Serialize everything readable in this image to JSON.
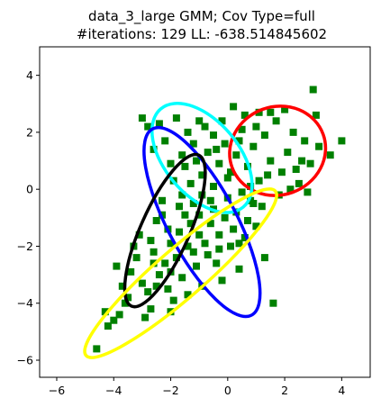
{
  "chart_data": {
    "type": "scatter",
    "title": "data_3_large GMM; Cov Type=full",
    "subtitle": "#iterations: 129 LL: -638.514845602",
    "xlabel": "",
    "ylabel": "",
    "xlim": [
      -6.6,
      5.0
    ],
    "ylim": [
      -6.6,
      5.0
    ],
    "x_ticks": [
      -6,
      -4,
      -2,
      0,
      2,
      4
    ],
    "y_ticks": [
      -6,
      -4,
      -2,
      0,
      2,
      4
    ],
    "grid": false,
    "marker": "square",
    "marker_color": "#008000",
    "points_note_free": true,
    "points": [
      [
        -4.6,
        -5.6
      ],
      [
        -4.0,
        -4.6
      ],
      [
        -3.8,
        -4.4
      ],
      [
        -4.2,
        -4.8
      ],
      [
        -3.6,
        -4.0
      ],
      [
        -3.5,
        -3.8
      ],
      [
        -3.9,
        -2.7
      ],
      [
        -3.4,
        -2.9
      ],
      [
        -3.2,
        -2.4
      ],
      [
        -3.0,
        -3.3
      ],
      [
        -2.8,
        -3.6
      ],
      [
        -2.7,
        -4.2
      ],
      [
        -2.9,
        -4.5
      ],
      [
        -2.6,
        -2.2
      ],
      [
        -2.4,
        -3.0
      ],
      [
        -2.2,
        -2.6
      ],
      [
        -2.1,
        -3.5
      ],
      [
        -2.0,
        -1.9
      ],
      [
        -1.8,
        -2.4
      ],
      [
        -1.7,
        -1.5
      ],
      [
        -1.6,
        -3.1
      ],
      [
        -1.5,
        -0.9
      ],
      [
        -1.4,
        -2.0
      ],
      [
        -1.3,
        -1.2
      ],
      [
        -1.2,
        -0.5
      ],
      [
        -1.1,
        -2.7
      ],
      [
        -1.0,
        -1.6
      ],
      [
        -0.9,
        -0.2
      ],
      [
        -0.8,
        -1.9
      ],
      [
        -0.7,
        -2.3
      ],
      [
        -0.6,
        -1.2
      ],
      [
        -0.5,
        -0.7
      ],
      [
        -0.4,
        -2.6
      ],
      [
        -0.3,
        -1.6
      ],
      [
        -0.2,
        -3.2
      ],
      [
        -0.1,
        -1.0
      ],
      [
        0.0,
        -0.3
      ],
      [
        0.1,
        -2.0
      ],
      [
        0.2,
        -1.4
      ],
      [
        0.3,
        -0.8
      ],
      [
        0.4,
        -2.8
      ],
      [
        0.5,
        -0.1
      ],
      [
        0.6,
        -1.7
      ],
      [
        0.7,
        -1.1
      ],
      [
        0.8,
        -0.4
      ],
      [
        1.0,
        -1.3
      ],
      [
        1.2,
        -0.6
      ],
      [
        1.3,
        -2.4
      ],
      [
        1.6,
        -4.0
      ],
      [
        -2.5,
        -1.1
      ],
      [
        -2.3,
        -0.4
      ],
      [
        -2.1,
        -1.4
      ],
      [
        -1.9,
        0.3
      ],
      [
        -1.7,
        -0.6
      ],
      [
        -1.5,
        0.8
      ],
      [
        -1.3,
        0.2
      ],
      [
        -1.1,
        1.0
      ],
      [
        -0.9,
        0.5
      ],
      [
        -0.7,
        1.3
      ],
      [
        -0.5,
        0.1
      ],
      [
        -0.3,
        0.9
      ],
      [
        -0.1,
        1.6
      ],
      [
        0.1,
        0.6
      ],
      [
        0.3,
        1.2
      ],
      [
        0.5,
        2.1
      ],
      [
        0.7,
        0.8
      ],
      [
        0.9,
        1.5
      ],
      [
        1.1,
        0.3
      ],
      [
        1.3,
        1.9
      ],
      [
        1.5,
        1.0
      ],
      [
        1.7,
        2.4
      ],
      [
        1.9,
        0.6
      ],
      [
        2.1,
        1.3
      ],
      [
        2.3,
        2.0
      ],
      [
        2.5,
        0.2
      ],
      [
        2.7,
        1.7
      ],
      [
        2.9,
        0.9
      ],
      [
        3.1,
        2.6
      ],
      [
        3.0,
        3.5
      ],
      [
        3.6,
        1.2
      ],
      [
        4.0,
        1.7
      ],
      [
        2.0,
        2.8
      ],
      [
        1.5,
        2.7
      ],
      [
        0.6,
        2.6
      ],
      [
        -0.2,
        2.4
      ],
      [
        -0.8,
        2.2
      ],
      [
        -1.4,
        2.0
      ],
      [
        -2.2,
        1.7
      ],
      [
        -2.6,
        1.4
      ],
      [
        -3.0,
        2.5
      ],
      [
        -2.8,
        2.2
      ],
      [
        -2.4,
        2.3
      ],
      [
        -1.2,
        1.6
      ],
      [
        -0.5,
        1.9
      ],
      [
        0.2,
        2.9
      ],
      [
        1.1,
        2.7
      ],
      [
        2.4,
        0.7
      ],
      [
        2.8,
        -0.1
      ],
      [
        1.8,
        -0.2
      ],
      [
        0.9,
        -0.5
      ],
      [
        -2.0,
        0.9
      ],
      [
        -1.6,
        1.2
      ],
      [
        -2.7,
        -1.8
      ],
      [
        -3.1,
        -1.6
      ],
      [
        -3.3,
        -2.0
      ],
      [
        -2.5,
        -3.4
      ],
      [
        -1.9,
        -3.9
      ],
      [
        -1.4,
        -3.7
      ],
      [
        -0.9,
        -3.4
      ],
      [
        -0.3,
        -2.1
      ],
      [
        0.4,
        -1.9
      ],
      [
        -3.7,
        -3.4
      ],
      [
        -4.3,
        -4.3
      ],
      [
        -2.0,
        -4.3
      ],
      [
        -1.0,
        -0.9
      ],
      [
        -1.6,
        -0.2
      ],
      [
        -2.3,
        -0.9
      ],
      [
        -0.6,
        -0.4
      ],
      [
        0.0,
        0.4
      ],
      [
        0.8,
        0.1
      ],
      [
        1.4,
        0.5
      ],
      [
        2.2,
        0.0
      ],
      [
        2.6,
        1.0
      ],
      [
        3.2,
        1.5
      ],
      [
        1.0,
        2.2
      ],
      [
        0.4,
        1.7
      ],
      [
        -0.4,
        1.4
      ],
      [
        -1.0,
        2.4
      ],
      [
        -1.8,
        2.5
      ],
      [
        -2.0,
        -2.9
      ],
      [
        -2.6,
        -2.6
      ],
      [
        -1.2,
        -2.2
      ]
    ],
    "ellipses": [
      {
        "cx": 1.75,
        "cy": 1.35,
        "rx": 1.7,
        "ry": 1.55,
        "angle_deg": 20,
        "color": "#ff0000"
      },
      {
        "cx": -0.9,
        "cy": 1.1,
        "rx": 2.25,
        "ry": 1.3,
        "angle_deg": -50,
        "color": "#00ffff"
      },
      {
        "cx": -0.9,
        "cy": -1.15,
        "rx": 3.7,
        "ry": 1.2,
        "angle_deg": -62,
        "color": "#0000ff"
      },
      {
        "cx": -2.2,
        "cy": -1.45,
        "rx": 2.9,
        "ry": 0.85,
        "angle_deg": 66,
        "color": "#000000"
      },
      {
        "cx": -1.65,
        "cy": -2.95,
        "rx": 4.4,
        "ry": 0.85,
        "angle_deg": 41,
        "color": "#ffff00"
      }
    ]
  }
}
